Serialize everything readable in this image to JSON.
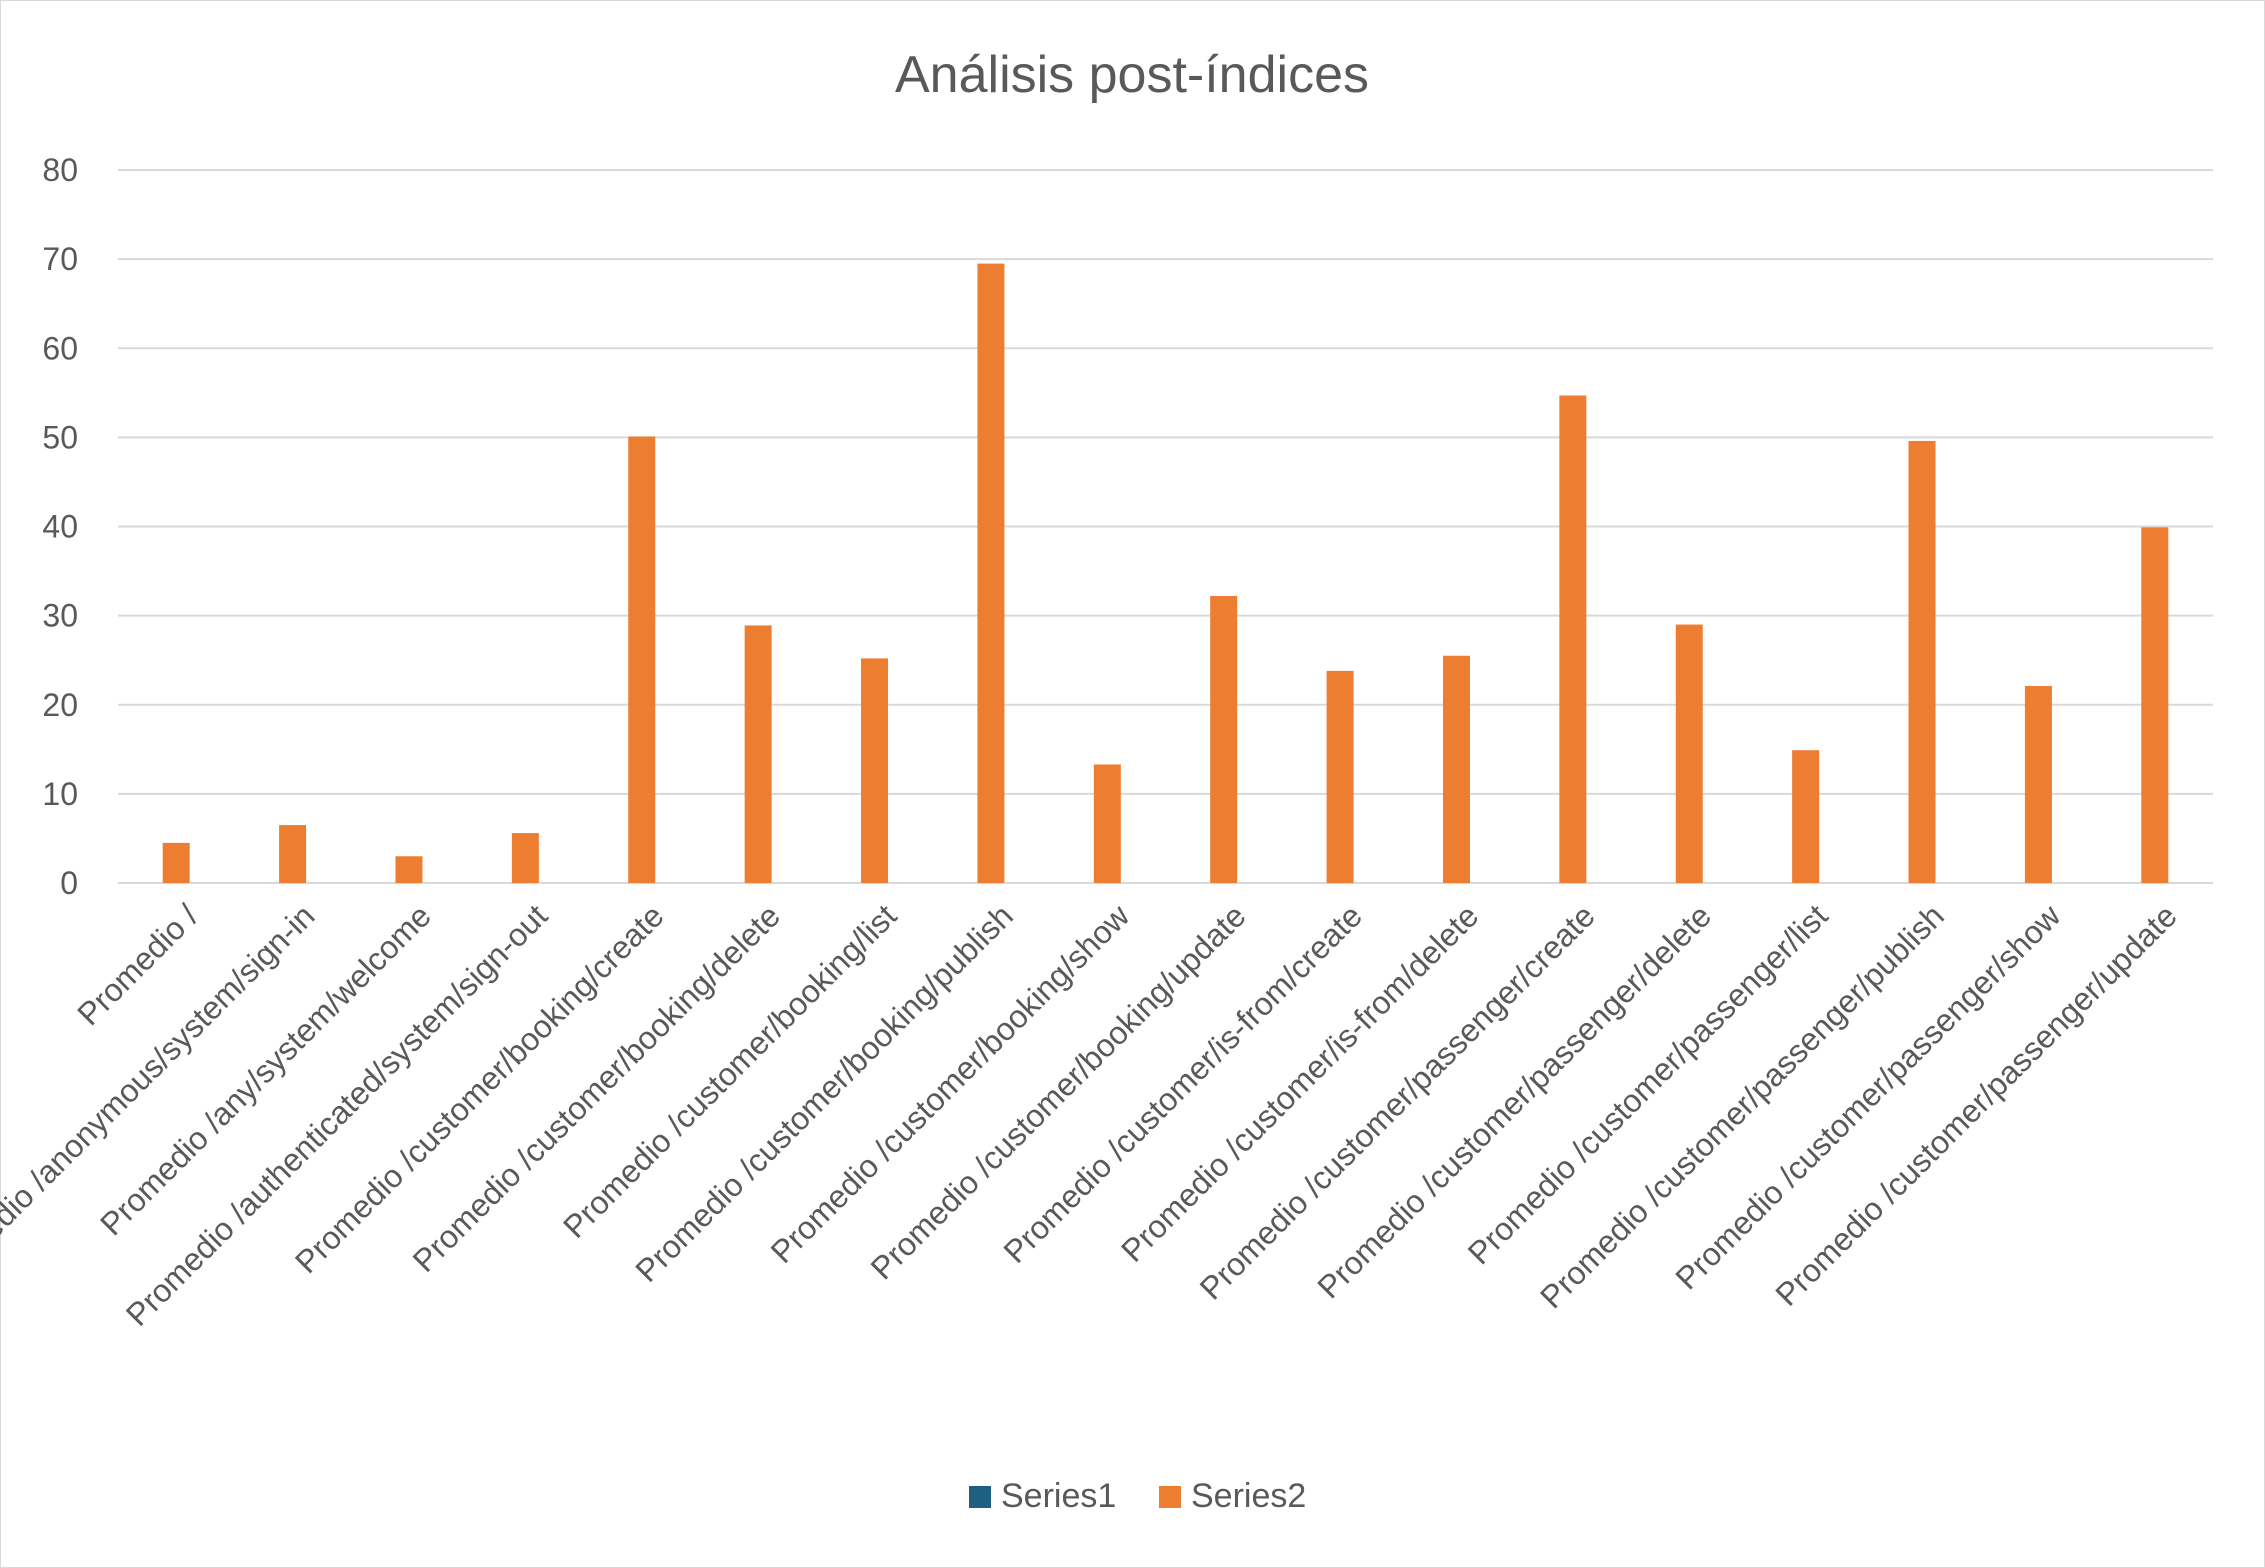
{
  "chart_data": {
    "type": "bar",
    "title": "Análisis post-índices",
    "xlabel": "",
    "ylabel": "",
    "ylim": [
      0,
      80
    ],
    "yticks": [
      "0",
      "10",
      "20",
      "30",
      "40",
      "50",
      "60",
      "70",
      "80"
    ],
    "grid": true,
    "legend_position": "bottom",
    "categories": [
      "Promedio /",
      "Promedio /anonymous/system/sign-in",
      "Promedio /any/system/welcome",
      "Promedio /authenticated/system/sign-out",
      "Promedio /customer/booking/create",
      "Promedio /customer/booking/delete",
      "Promedio /customer/booking/list",
      "Promedio /customer/booking/publish",
      "Promedio /customer/booking/show",
      "Promedio /customer/booking/update",
      "Promedio /customer/is-from/create",
      "Promedio /customer/is-from/delete",
      "Promedio /customer/passenger/create",
      "Promedio /customer/passenger/delete",
      "Promedio /customer/passenger/list",
      "Promedio /customer/passenger/publish",
      "Promedio /customer/passenger/show",
      "Promedio /customer/passenger/update"
    ],
    "series": [
      {
        "name": "Series1",
        "color": "#1f5f7f",
        "values": [
          0,
          0,
          0,
          0,
          0,
          0,
          0,
          0,
          0,
          0,
          0,
          0,
          0,
          0,
          0,
          0,
          0,
          0
        ]
      },
      {
        "name": "Series2",
        "color": "#ed7d31",
        "values": [
          4.5,
          6.5,
          3.0,
          5.6,
          50.1,
          28.9,
          25.2,
          69.5,
          13.3,
          32.2,
          23.8,
          25.5,
          54.7,
          29.0,
          14.9,
          49.6,
          22.1,
          39.9
        ]
      }
    ]
  }
}
